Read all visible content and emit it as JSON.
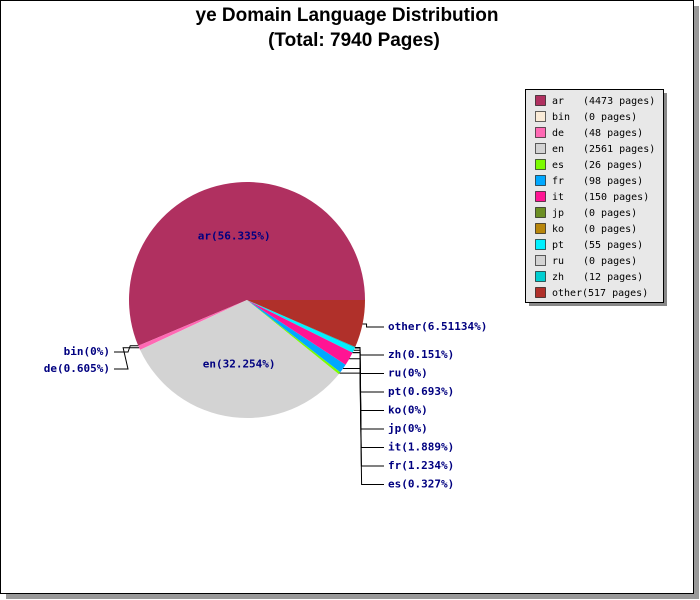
{
  "chart_data": {
    "type": "pie",
    "title": "ye Domain Language Distribution",
    "subtitle": "(Total: 7940 Pages)",
    "categories": [
      "ar",
      "bin",
      "de",
      "en",
      "es",
      "fr",
      "it",
      "jp",
      "ko",
      "pt",
      "ru",
      "zh",
      "other"
    ],
    "values": [
      4473,
      0,
      48,
      2561,
      26,
      98,
      150,
      0,
      0,
      55,
      0,
      12,
      517
    ],
    "value_labels": [
      "(4473 pages)",
      "(0 pages)",
      "(48 pages)",
      "(2561 pages)",
      "(26 pages)",
      "(98 pages)",
      "(150 pages)",
      "(0 pages)",
      "(0 pages)",
      "(55 pages)",
      "(0 pages)",
      "(12 pages)",
      "(517 pages)"
    ],
    "slice_labels": [
      "ar(56.335%)",
      "bin(0%)",
      "de(0.605%)",
      "en(32.254%)",
      "es(0.327%)",
      "fr(1.234%)",
      "it(1.889%)",
      "jp(0%)",
      "ko(0%)",
      "pt(0.693%)",
      "ru(0%)",
      "zh(0.151%)",
      "other(6.51134%)"
    ],
    "colors": [
      "#b03060",
      "#faebd7",
      "#ff69b4",
      "#d3d3d3",
      "#7cfc00",
      "#00a8ff",
      "#ff1493",
      "#6b8e23",
      "#b8860b",
      "#00f0ff",
      "#d3d3d3",
      "#00ced1",
      "#b0302a"
    ],
    "legend": "right"
  }
}
